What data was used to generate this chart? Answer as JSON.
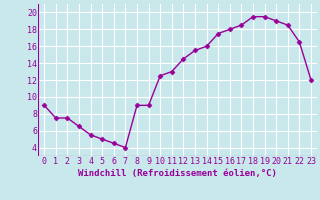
{
  "x": [
    0,
    1,
    2,
    3,
    4,
    5,
    6,
    7,
    8,
    9,
    10,
    11,
    12,
    13,
    14,
    15,
    16,
    17,
    18,
    19,
    20,
    21,
    22,
    23
  ],
  "y": [
    9.0,
    7.5,
    7.5,
    6.5,
    5.5,
    5.0,
    4.5,
    4.0,
    9.0,
    9.0,
    12.5,
    13.0,
    14.5,
    15.5,
    16.0,
    17.5,
    18.0,
    18.5,
    19.5,
    19.5,
    19.0,
    18.5,
    16.5,
    12.0
  ],
  "line_color": "#990099",
  "marker_color": "#990099",
  "bg_color": "#c8e8ec",
  "grid_color": "#ffffff",
  "xlabel": "Windchill (Refroidissement éolien,°C)",
  "xlim": [
    -0.5,
    23.5
  ],
  "ylim": [
    3,
    21
  ],
  "yticks": [
    4,
    6,
    8,
    10,
    12,
    14,
    16,
    18,
    20
  ],
  "xtick_labels": [
    "0",
    "1",
    "2",
    "3",
    "4",
    "5",
    "6",
    "7",
    "8",
    "9",
    "10",
    "11",
    "12",
    "13",
    "14",
    "15",
    "16",
    "17",
    "18",
    "19",
    "20",
    "21",
    "22",
    "23"
  ],
  "xlabel_fontsize": 6.5,
  "tick_fontsize": 6.0,
  "line_width": 1.0,
  "marker_size": 2.5
}
